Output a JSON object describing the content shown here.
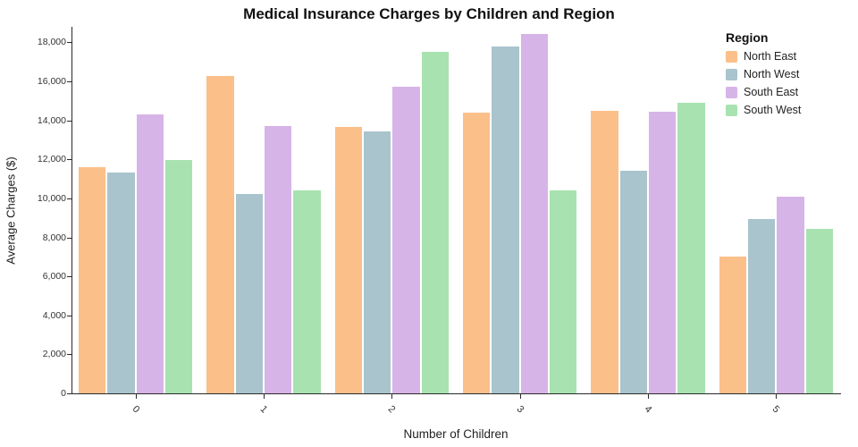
{
  "chart_data": {
    "type": "bar",
    "title": "Medical Insurance Charges by Children and Region",
    "xlabel": "Number of Children",
    "ylabel": "Average Charges ($)",
    "legend_title": "Region",
    "legend_position": "top-right",
    "grid": false,
    "categories": [
      "0",
      "1",
      "2",
      "3",
      "4",
      "5"
    ],
    "series": [
      {
        "name": "North East",
        "color": "#fbbf8a",
        "values": [
          11600,
          16300,
          13650,
          14400,
          14500,
          7000
        ]
      },
      {
        "name": "North West",
        "color": "#a9c4cd",
        "values": [
          11350,
          10250,
          13450,
          17800,
          11400,
          8950
        ]
      },
      {
        "name": "South East",
        "color": "#d7b4e8",
        "values": [
          14300,
          13700,
          15750,
          18450,
          14450,
          10100
        ]
      },
      {
        "name": "South West",
        "color": "#a8e2b0",
        "values": [
          11950,
          10400,
          17500,
          10400,
          14900,
          8450
        ]
      }
    ],
    "ylim": [
      0,
      18800
    ],
    "yticks": [
      {
        "value": 0,
        "label": "0"
      },
      {
        "value": 2000,
        "label": "2,000"
      },
      {
        "value": 4000,
        "label": "4,000"
      },
      {
        "value": 6000,
        "label": "6,000"
      },
      {
        "value": 8000,
        "label": "8,000"
      },
      {
        "value": 10000,
        "label": "10,000"
      },
      {
        "value": 12000,
        "label": "12,000"
      },
      {
        "value": 14000,
        "label": "14,000"
      },
      {
        "value": 16000,
        "label": "16,000"
      },
      {
        "value": 18000,
        "label": "18,000"
      }
    ]
  }
}
